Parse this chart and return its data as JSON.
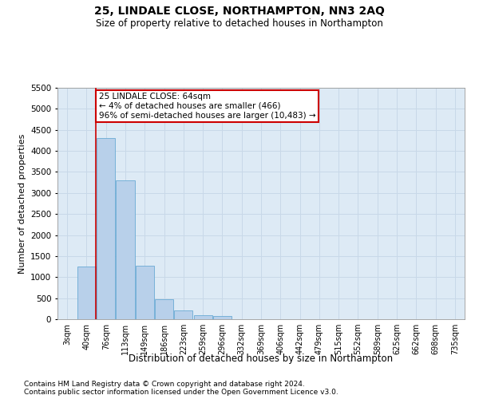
{
  "title": "25, LINDALE CLOSE, NORTHAMPTON, NN3 2AQ",
  "subtitle": "Size of property relative to detached houses in Northampton",
  "xlabel": "Distribution of detached houses by size in Northampton",
  "ylabel": "Number of detached properties",
  "bar_categories": [
    "3sqm",
    "40sqm",
    "76sqm",
    "113sqm",
    "149sqm",
    "186sqm",
    "223sqm",
    "259sqm",
    "296sqm",
    "332sqm",
    "369sqm",
    "406sqm",
    "442sqm",
    "479sqm",
    "515sqm",
    "552sqm",
    "589sqm",
    "625sqm",
    "662sqm",
    "698sqm",
    "735sqm"
  ],
  "bar_values": [
    0,
    1250,
    4300,
    3300,
    1280,
    480,
    200,
    100,
    70,
    0,
    0,
    0,
    0,
    0,
    0,
    0,
    0,
    0,
    0,
    0,
    0
  ],
  "bar_color": "#b8d0ea",
  "bar_edge_color": "#6aaad4",
  "grid_color": "#c8d8e8",
  "background_color": "#ddeaf5",
  "vline_color": "#cc0000",
  "annotation_text": "25 LINDALE CLOSE: 64sqm\n← 4% of detached houses are smaller (466)\n96% of semi-detached houses are larger (10,483) →",
  "annotation_box_color": "#ffffff",
  "annotation_box_edge": "#cc0000",
  "ylim": [
    0,
    5500
  ],
  "yticks": [
    0,
    500,
    1000,
    1500,
    2000,
    2500,
    3000,
    3500,
    4000,
    4500,
    5000,
    5500
  ],
  "footnote1": "Contains HM Land Registry data © Crown copyright and database right 2024.",
  "footnote2": "Contains public sector information licensed under the Open Government Licence v3.0."
}
